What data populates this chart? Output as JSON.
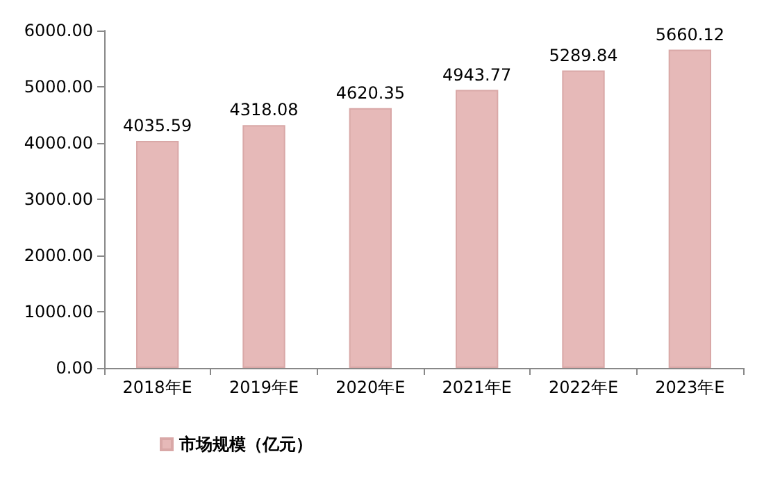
{
  "chart_data": {
    "type": "bar",
    "categories": [
      "2018年E",
      "2019年E",
      "2020年E",
      "2021年E",
      "2022年E",
      "2023年E"
    ],
    "series": [
      {
        "name": "市场规模（亿元）",
        "color": "#e6b9b8",
        "values": [
          4035.59,
          4318.08,
          4620.35,
          4943.77,
          5289.84,
          5660.12
        ]
      }
    ],
    "ylim": [
      0,
      6000
    ],
    "yticks": [
      {
        "value": 0,
        "label": "0.00"
      },
      {
        "value": 1000,
        "label": "1000.00"
      },
      {
        "value": 2000,
        "label": "2000.00"
      },
      {
        "value": 3000,
        "label": "3000.00"
      },
      {
        "value": 4000,
        "label": "4000.00"
      },
      {
        "value": 5000,
        "label": "5000.00"
      },
      {
        "value": 6000,
        "label": "6000.00"
      }
    ],
    "data_labels": true,
    "grid": false,
    "legend": "bottom left"
  }
}
